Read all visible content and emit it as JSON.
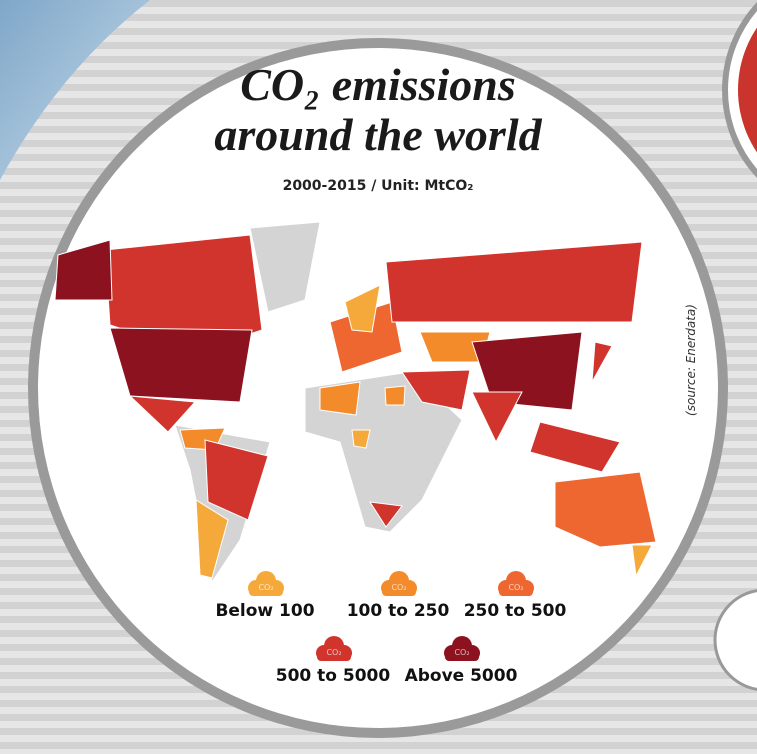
{
  "header": {
    "title_line1": "CO₂ emissions",
    "title_line2": "around the world",
    "subtitle": "2000-2015 / Unit: MtCO₂",
    "source": "(source: Enerdata)"
  },
  "legend": {
    "icon_label": "CO₂",
    "items": [
      {
        "label": "Below 100",
        "color": "#f6a93b"
      },
      {
        "label": "100 to 250",
        "color": "#f38b2a"
      },
      {
        "label": "250 to 500",
        "color": "#ee6630"
      },
      {
        "label": "500 to 5000",
        "color": "#d0342c"
      },
      {
        "label": "Above 5000",
        "color": "#8c1220"
      }
    ]
  }
}
